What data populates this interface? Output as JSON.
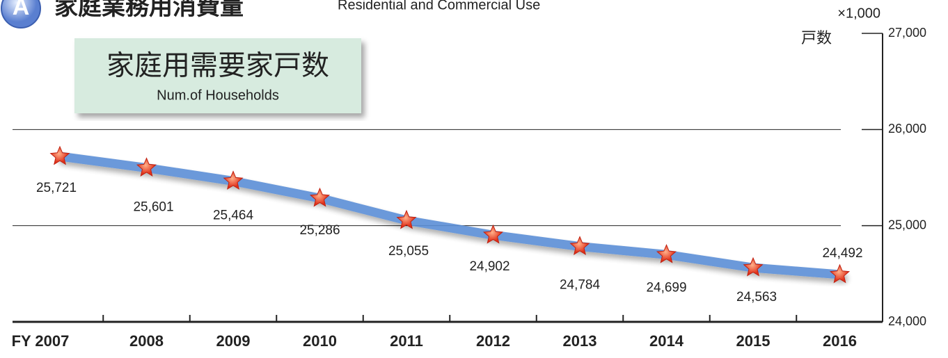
{
  "header": {
    "badge": "A",
    "title": "家庭業務用消費量",
    "subtitle": "Residential and Commercial Use"
  },
  "chart_data": {
    "type": "line",
    "title": "家庭用需要家戸数",
    "subtitle": "Num.of Households",
    "unit": "×1,000",
    "y_label": "戸数",
    "categories": [
      "FY 2007",
      "2008",
      "2009",
      "2010",
      "2011",
      "2012",
      "2013",
      "2014",
      "2015",
      "2016"
    ],
    "series": [
      {
        "name": "家庭用需要家戸数",
        "color": "#5b8fd6",
        "values": [
          25721,
          25601,
          25464,
          25286,
          25055,
          24902,
          24784,
          24699,
          24563,
          24492
        ],
        "value_labels": [
          "25,721",
          "25,601",
          "25,464",
          "25,286",
          "25,055",
          "24,902",
          "24,784",
          "24,699",
          "24,563",
          "24,492"
        ]
      }
    ],
    "ylim": [
      24000,
      27000
    ],
    "yticks": [
      {
        "value": 24000,
        "label": "24,000"
      },
      {
        "value": 25000,
        "label": "25,000"
      },
      {
        "value": 26000,
        "label": "26,000"
      },
      {
        "value": 27000,
        "label": "27,000"
      }
    ],
    "grid": true
  }
}
